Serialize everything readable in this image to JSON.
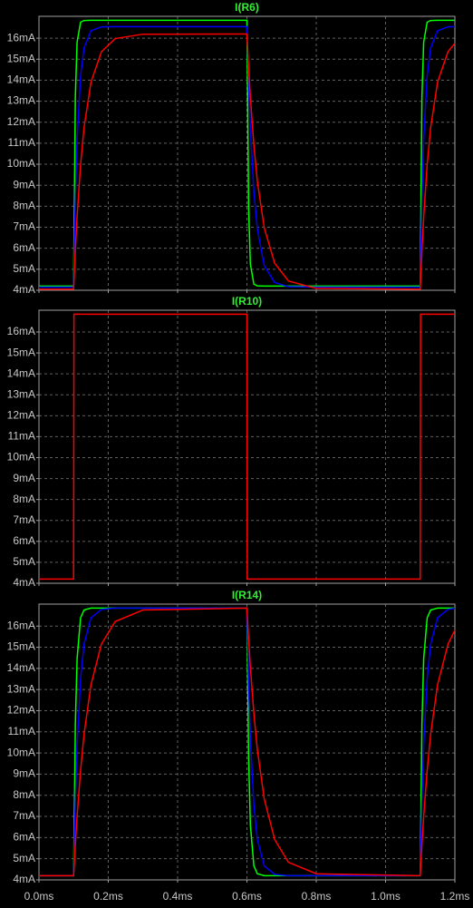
{
  "chart_data": [
    {
      "type": "line",
      "title": "I(R6)",
      "title_color": "#33ee33",
      "x": [
        0,
        0.1,
        0.105,
        0.11,
        0.12,
        0.13,
        0.15,
        0.18,
        0.22,
        0.3,
        0.6,
        0.605,
        0.61,
        0.62,
        0.63,
        0.65,
        0.68,
        0.72,
        0.8,
        1.1,
        1.105,
        1.11,
        1.12,
        1.13,
        1.15,
        1.18,
        1.2
      ],
      "series": [
        {
          "color": "#00ff00",
          "values": [
            4.2,
            4.2,
            13.22,
            15.81,
            16.76,
            16.84,
            16.85,
            16.85,
            16.85,
            16.85,
            16.85,
            7.83,
            5.24,
            4.29,
            4.21,
            4.2,
            4.2,
            4.2,
            4.2,
            4.2,
            13.22,
            15.81,
            16.76,
            16.84,
            16.85,
            16.85,
            16.85
          ]
        },
        {
          "color": "#0000ff",
          "values": [
            4.15,
            4.15,
            8.38,
            11.16,
            14.21,
            15.53,
            16.35,
            16.54,
            16.55,
            16.55,
            16.55,
            13.81,
            11.68,
            8.71,
            6.92,
            5.17,
            4.37,
            4.17,
            4.15,
            4.15,
            8.38,
            11.16,
            14.21,
            15.53,
            16.35,
            16.54,
            16.55
          ]
        },
        {
          "color": "#ff0000",
          "values": [
            4.05,
            4.05,
            5.92,
            7.49,
            9.97,
            11.73,
            13.9,
            15.35,
            15.98,
            16.19,
            16.2,
            14.58,
            13.17,
            10.91,
            9.2,
            6.97,
            5.29,
            4.44,
            4.09,
            4.05,
            5.92,
            7.49,
            9.97,
            11.73,
            13.9,
            15.35,
            15.76
          ]
        }
      ],
      "xlim": [
        0,
        1.2
      ],
      "ylim": [
        4,
        17.04
      ],
      "yticks": [
        {
          "value": 4,
          "label": "4mA"
        },
        {
          "value": 5,
          "label": "5mA"
        },
        {
          "value": 6,
          "label": "6mA"
        },
        {
          "value": 7,
          "label": "7mA"
        },
        {
          "value": 8,
          "label": "8mA"
        },
        {
          "value": 9,
          "label": "9mA"
        },
        {
          "value": 10,
          "label": "10mA"
        },
        {
          "value": 11,
          "label": "11mA"
        },
        {
          "value": 12,
          "label": "12mA"
        },
        {
          "value": 13,
          "label": "13mA"
        },
        {
          "value": 14,
          "label": "14mA"
        },
        {
          "value": 15,
          "label": "15mA"
        },
        {
          "value": 16,
          "label": "16mA"
        }
      ],
      "grid": true
    },
    {
      "type": "line",
      "title": "I(R10)",
      "title_color": "#33ee33",
      "x": [
        0,
        0.1,
        0.101,
        0.6,
        0.601,
        1.1,
        1.101,
        1.2
      ],
      "series": [
        {
          "color": "#ff0000",
          "values": [
            4.2,
            4.2,
            16.85,
            16.85,
            4.2,
            4.2,
            16.85,
            16.85
          ]
        }
      ],
      "xlim": [
        0,
        1.2
      ],
      "ylim": [
        4,
        17.04
      ],
      "yticks": [
        {
          "value": 4,
          "label": "4mA"
        },
        {
          "value": 5,
          "label": "5mA"
        },
        {
          "value": 6,
          "label": "6mA"
        },
        {
          "value": 7,
          "label": "7mA"
        },
        {
          "value": 8,
          "label": "8mA"
        },
        {
          "value": 9,
          "label": "9mA"
        },
        {
          "value": 10,
          "label": "10mA"
        },
        {
          "value": 11,
          "label": "11mA"
        },
        {
          "value": 12,
          "label": "12mA"
        },
        {
          "value": 13,
          "label": "13mA"
        },
        {
          "value": 14,
          "label": "14mA"
        },
        {
          "value": 15,
          "label": "15mA"
        },
        {
          "value": 16,
          "label": "16mA"
        }
      ],
      "grid": true
    },
    {
      "type": "line",
      "title": "I(R14)",
      "title_color": "#33ee33",
      "x": [
        0,
        0.1,
        0.105,
        0.11,
        0.12,
        0.13,
        0.15,
        0.18,
        0.22,
        0.3,
        0.6,
        0.605,
        0.61,
        0.62,
        0.63,
        0.65,
        0.68,
        0.72,
        0.8,
        1.1,
        1.105,
        1.11,
        1.12,
        1.13,
        1.15,
        1.18,
        1.2
      ],
      "series": [
        {
          "color": "#00ff00",
          "values": [
            4.2,
            4.2,
            11.35,
            14.46,
            16.39,
            16.76,
            16.85,
            16.85,
            16.85,
            16.85,
            16.85,
            9.7,
            6.59,
            4.66,
            4.29,
            4.2,
            4.2,
            4.2,
            4.2,
            4.2,
            11.35,
            14.46,
            16.39,
            16.76,
            16.85,
            16.85,
            16.85
          ]
        },
        {
          "color": "#0000ff",
          "values": [
            4.2,
            4.2,
            7.78,
            10.36,
            13.51,
            15.14,
            16.39,
            16.79,
            16.85,
            16.85,
            16.85,
            13.27,
            10.69,
            7.54,
            5.91,
            4.66,
            4.26,
            4.2,
            4.2,
            4.2,
            7.78,
            10.36,
            13.51,
            15.14,
            16.39,
            16.79,
            16.84
          ]
        },
        {
          "color": "#ff0000",
          "values": [
            4.2,
            4.2,
            5.69,
            7.0,
            9.17,
            10.88,
            13.22,
            15.14,
            16.22,
            16.76,
            16.85,
            15.36,
            14.05,
            11.88,
            10.17,
            7.83,
            5.91,
            4.83,
            4.29,
            4.2,
            5.69,
            7.0,
            9.17,
            10.88,
            13.22,
            15.14,
            15.81
          ]
        }
      ],
      "xlim": [
        0,
        1.2
      ],
      "ylim": [
        4,
        17.04
      ],
      "xticks": [
        {
          "value": 0,
          "label": "0.0ms"
        },
        {
          "value": 0.2,
          "label": "0.2ms"
        },
        {
          "value": 0.4,
          "label": "0.4ms"
        },
        {
          "value": 0.6,
          "label": "0.6ms"
        },
        {
          "value": 0.8,
          "label": "0.8ms"
        },
        {
          "value": 1.0,
          "label": "1.0ms"
        },
        {
          "value": 1.2,
          "label": "1.2ms"
        }
      ],
      "yticks": [
        {
          "value": 4,
          "label": "4mA"
        },
        {
          "value": 5,
          "label": "5mA"
        },
        {
          "value": 6,
          "label": "6mA"
        },
        {
          "value": 7,
          "label": "7mA"
        },
        {
          "value": 8,
          "label": "8mA"
        },
        {
          "value": 9,
          "label": "9mA"
        },
        {
          "value": 10,
          "label": "10mA"
        },
        {
          "value": 11,
          "label": "11mA"
        },
        {
          "value": 12,
          "label": "12mA"
        },
        {
          "value": 13,
          "label": "13mA"
        },
        {
          "value": 14,
          "label": "14mA"
        },
        {
          "value": 15,
          "label": "15mA"
        },
        {
          "value": 16,
          "label": "16mA"
        }
      ],
      "grid": true
    }
  ]
}
